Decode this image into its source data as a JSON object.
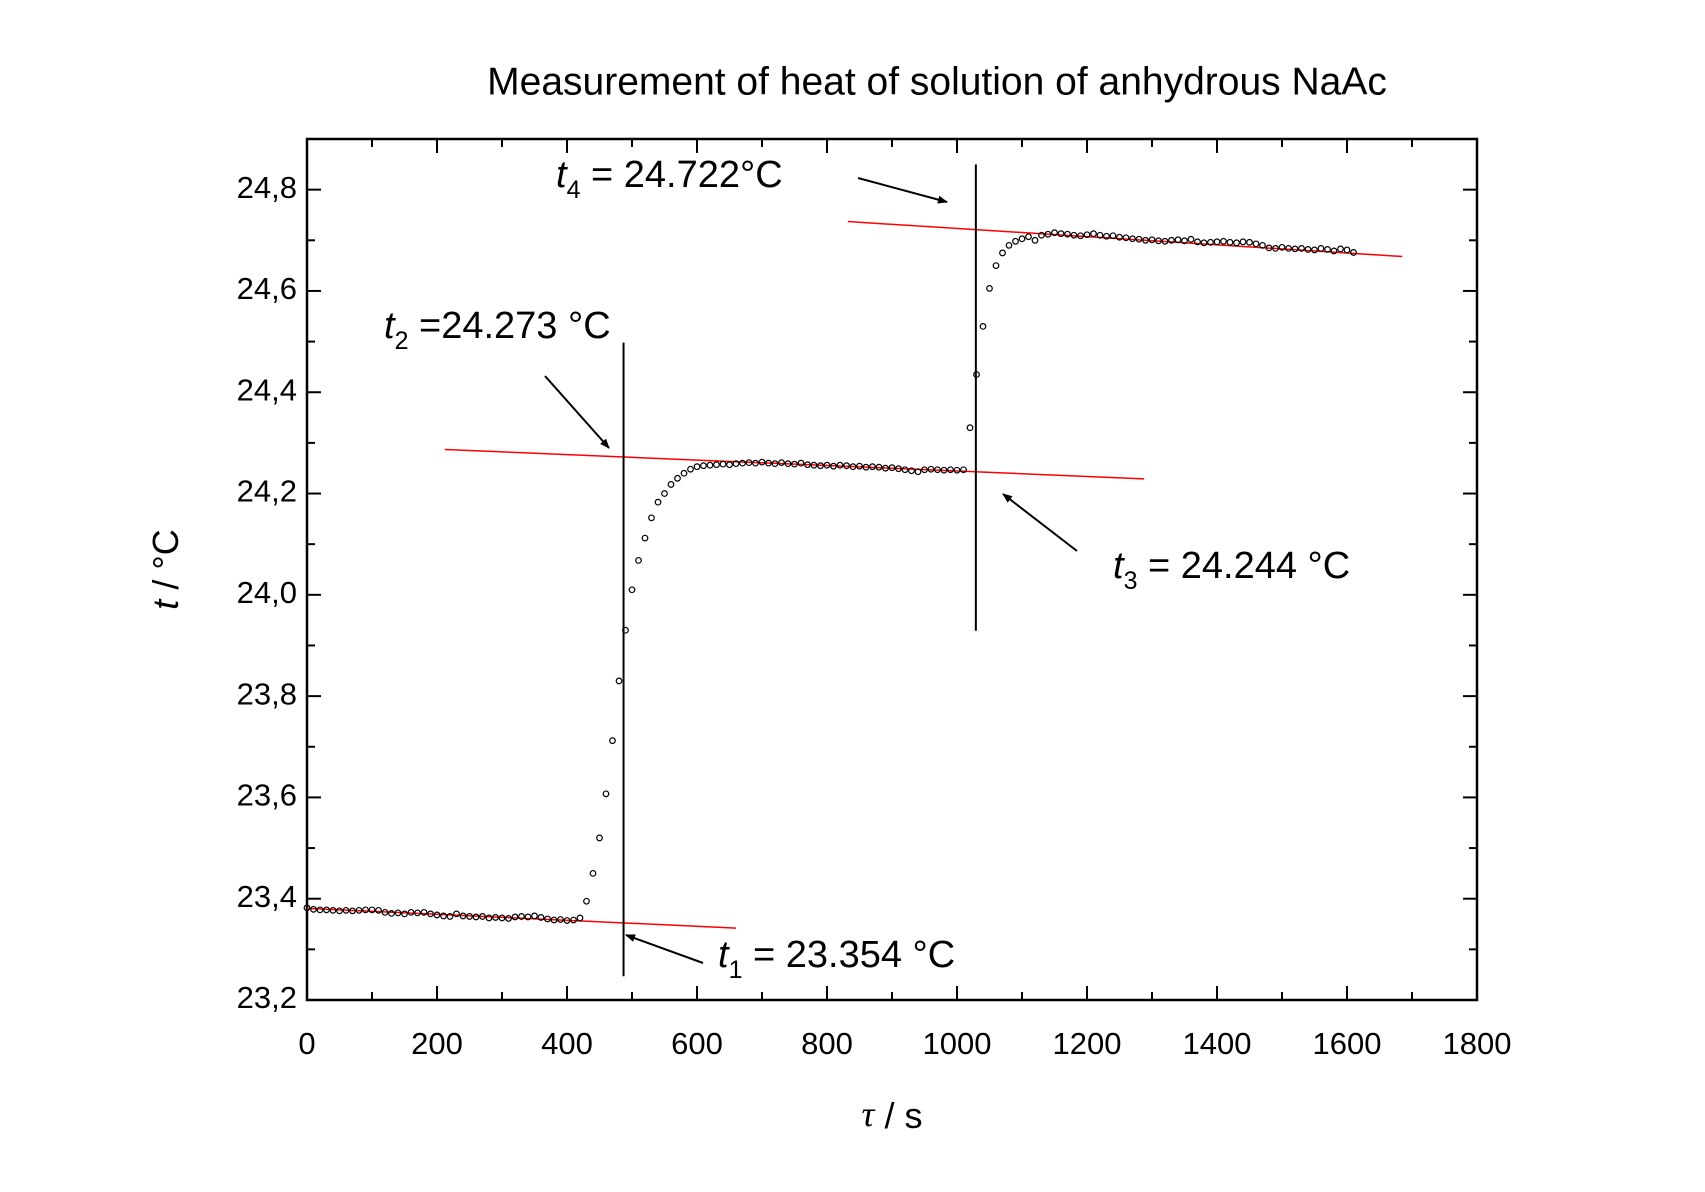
{
  "chart_data": {
    "type": "scatter",
    "title": "Measurement of heat of solution of anhydrous NaAc",
    "xlabel": {
      "symbol": "τ",
      "unit": " / s"
    },
    "ylabel": {
      "symbol": "t",
      "unit": " / °C"
    },
    "xlim": [
      0,
      1800
    ],
    "ylim": [
      23.2,
      24.9
    ],
    "xticks": [
      0,
      200,
      400,
      600,
      800,
      1000,
      1200,
      1400,
      1600,
      1800
    ],
    "xticks_minor": [
      100,
      300,
      500,
      700,
      900,
      1100,
      1300,
      1500,
      1700
    ],
    "yticks": [
      {
        "value": 23.2,
        "label": "23,2"
      },
      {
        "value": 23.4,
        "label": "23,4"
      },
      {
        "value": 23.6,
        "label": "23,6"
      },
      {
        "value": 23.8,
        "label": "23,8"
      },
      {
        "value": 24.0,
        "label": "24,0"
      },
      {
        "value": 24.2,
        "label": "24,2"
      },
      {
        "value": 24.4,
        "label": "24,4"
      },
      {
        "value": 24.6,
        "label": "24,6"
      },
      {
        "value": 24.8,
        "label": "24,8"
      }
    ],
    "yticks_minor": [
      23.3,
      23.5,
      23.7,
      23.9,
      24.1,
      24.3,
      24.5,
      24.7
    ],
    "point_color": "#000000",
    "x": [
      0,
      10,
      20,
      30,
      40,
      50,
      60,
      70,
      80,
      90,
      100,
      110,
      120,
      130,
      140,
      150,
      160,
      170,
      180,
      190,
      200,
      210,
      220,
      230,
      240,
      250,
      260,
      270,
      280,
      290,
      300,
      310,
      320,
      330,
      340,
      350,
      360,
      370,
      380,
      390,
      400,
      410,
      420,
      430,
      440,
      450,
      460,
      470,
      480,
      490,
      500,
      510,
      520,
      530,
      540,
      550,
      560,
      570,
      580,
      590,
      600,
      610,
      620,
      630,
      640,
      650,
      660,
      670,
      680,
      690,
      700,
      710,
      720,
      730,
      740,
      750,
      760,
      770,
      780,
      790,
      800,
      810,
      820,
      830,
      840,
      850,
      860,
      870,
      880,
      890,
      900,
      910,
      920,
      930,
      940,
      950,
      960,
      970,
      980,
      990,
      1000,
      1010,
      1020,
      1030,
      1040,
      1050,
      1060,
      1070,
      1080,
      1090,
      1100,
      1110,
      1120,
      1130,
      1140,
      1150,
      1160,
      1170,
      1180,
      1190,
      1200,
      1210,
      1220,
      1230,
      1240,
      1250,
      1260,
      1270,
      1280,
      1290,
      1300,
      1310,
      1320,
      1330,
      1340,
      1350,
      1360,
      1370,
      1380,
      1390,
      1400,
      1410,
      1420,
      1430,
      1440,
      1450,
      1460,
      1470,
      1480,
      1490,
      1500,
      1510,
      1520,
      1530,
      1540,
      1550,
      1560,
      1570,
      1580,
      1590,
      1600,
      1610
    ],
    "values": [
      23.382,
      23.379,
      23.378,
      23.378,
      23.377,
      23.376,
      23.377,
      23.376,
      23.377,
      23.378,
      23.378,
      23.377,
      23.373,
      23.371,
      23.372,
      23.37,
      23.373,
      23.372,
      23.373,
      23.37,
      23.368,
      23.366,
      23.365,
      23.37,
      23.366,
      23.365,
      23.364,
      23.365,
      23.362,
      23.363,
      23.362,
      23.361,
      23.364,
      23.365,
      23.364,
      23.366,
      23.363,
      23.36,
      23.358,
      23.359,
      23.357,
      23.358,
      23.362,
      23.395,
      23.45,
      23.52,
      23.607,
      23.712,
      23.83,
      23.93,
      24.01,
      24.068,
      24.112,
      24.152,
      24.183,
      24.2,
      24.218,
      24.23,
      24.24,
      24.248,
      24.253,
      24.255,
      24.256,
      24.257,
      24.258,
      24.257,
      24.259,
      24.26,
      24.261,
      24.26,
      24.262,
      24.26,
      24.259,
      24.261,
      24.259,
      24.258,
      24.26,
      24.257,
      24.256,
      24.255,
      24.256,
      24.254,
      24.256,
      24.255,
      24.253,
      24.254,
      24.252,
      24.253,
      24.252,
      24.25,
      24.251,
      24.249,
      24.247,
      24.245,
      24.243,
      24.247,
      24.248,
      24.247,
      24.246,
      24.247,
      24.246,
      24.247,
      24.33,
      24.435,
      24.53,
      24.605,
      24.65,
      24.675,
      24.69,
      24.698,
      24.703,
      24.707,
      24.7,
      24.71,
      24.712,
      24.715,
      24.713,
      24.712,
      24.71,
      24.709,
      24.711,
      24.713,
      24.71,
      24.708,
      24.709,
      24.706,
      24.705,
      24.703,
      24.702,
      24.7,
      24.701,
      24.699,
      24.698,
      24.7,
      24.701,
      24.699,
      24.702,
      24.697,
      24.695,
      24.696,
      24.697,
      24.698,
      24.696,
      24.695,
      24.697,
      24.696,
      24.693,
      24.69,
      24.685,
      24.684,
      24.686,
      24.684,
      24.683,
      24.684,
      24.682,
      24.681,
      24.684,
      24.682,
      24.679,
      24.683,
      24.681,
      24.676
    ],
    "fit_color": "#ff0000",
    "fit_lines": [
      {
        "x": [
          0,
          660
        ],
        "y": [
          23.381,
          23.342
        ]
      },
      {
        "x": [
          212,
          1288
        ],
        "y": [
          24.287,
          24.229
        ]
      },
      {
        "x": [
          832,
          1685
        ],
        "y": [
          24.737,
          24.668
        ]
      }
    ],
    "vertical_lines": [
      {
        "x": 487,
        "y": [
          23.247,
          24.498
        ]
      },
      {
        "x": 1029,
        "y": [
          23.929,
          24.85
        ]
      }
    ],
    "annotations": [
      {
        "symbol": "t",
        "sub": "1",
        "text": " = 23.354 °C"
      },
      {
        "symbol": "t",
        "sub": "2",
        "text": " =24.273 °C"
      },
      {
        "symbol": "t",
        "sub": "3",
        "text": " = 24.244 °C"
      },
      {
        "symbol": "t",
        "sub": "4",
        "text": " = 24.722°C"
      }
    ]
  }
}
